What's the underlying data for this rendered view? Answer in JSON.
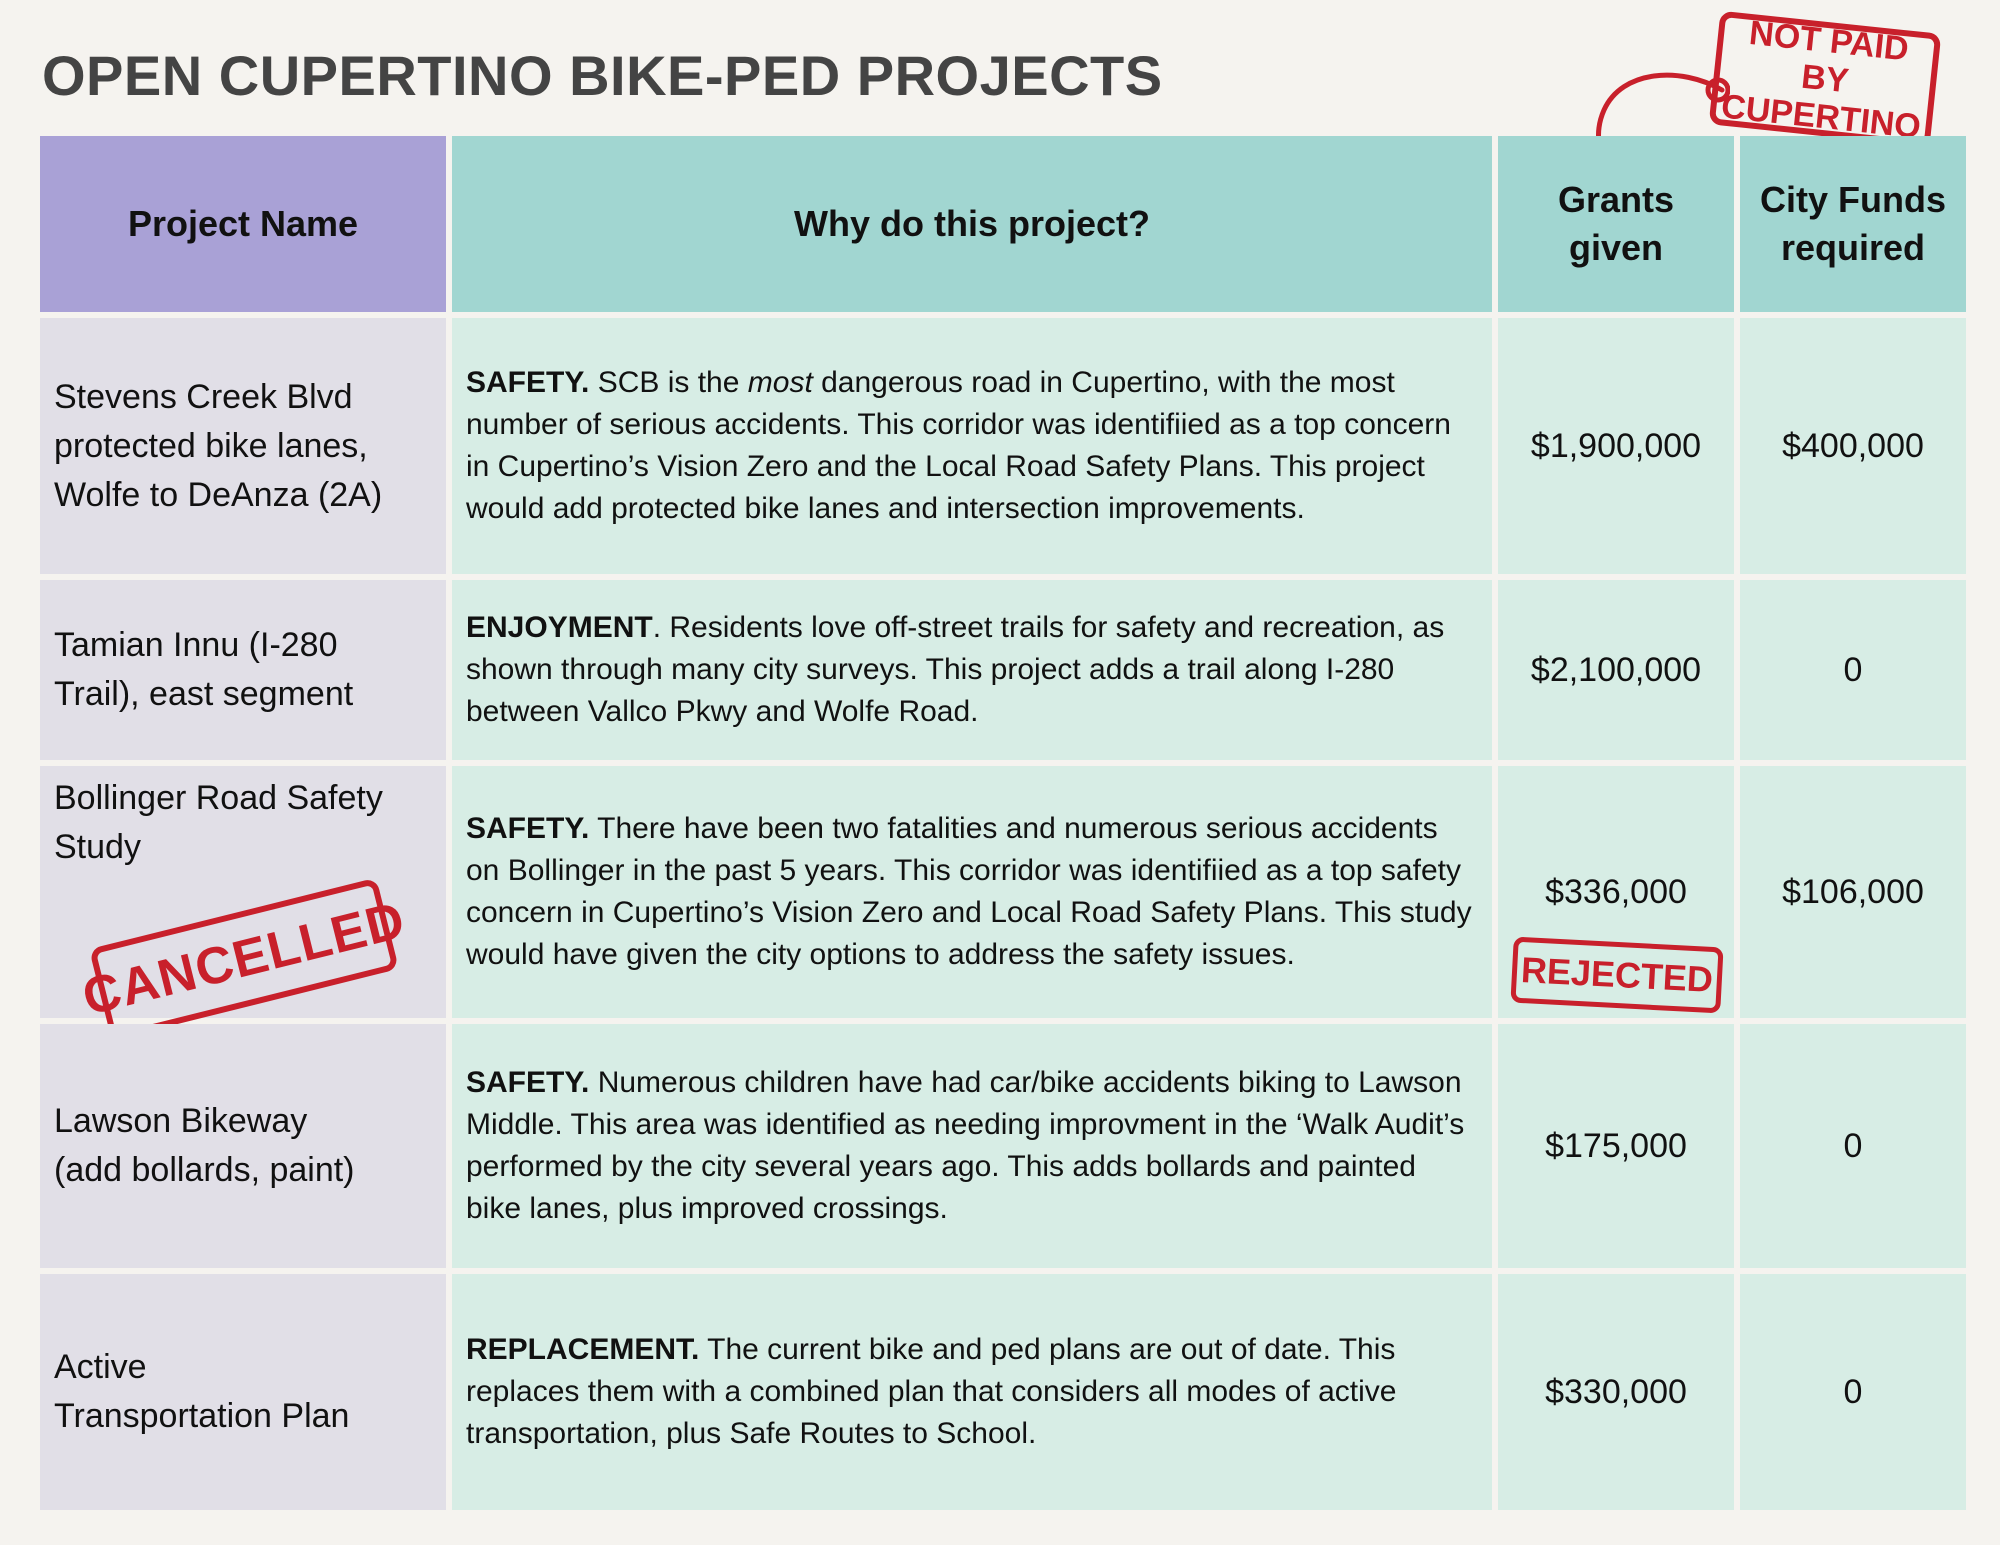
{
  "title": "OPEN CUPERTINO BIKE-PED PROJECTS",
  "headers": {
    "name": "Project Name",
    "why": "Why do this project?",
    "grants": [
      "Grants",
      "given"
    ],
    "city": [
      "City Funds",
      "required"
    ]
  },
  "callout": {
    "stamp_line1": "NOT PAID BY",
    "stamp_line2": "CUPERTINO"
  },
  "rows": [
    {
      "name": [
        "Stevens Creek Blvd",
        "protected bike lanes,",
        "Wolfe to DeAnza (2A)"
      ],
      "why_label": "SAFETY.",
      "why_pre": " SCB is the ",
      "why_em": "most",
      "why_post": " dangerous road in Cupertino, with the most number of serious accidents. This corridor was identifiied as a top concern in Cupertino’s Vision Zero and the Local Road Safety Plans. This project would add protected bike lanes and intersection improvements.",
      "grants": "$1,900,000",
      "city": "$400,000"
    },
    {
      "name": [
        "Tamian Innu (I-280",
        "Trail), east segment"
      ],
      "why_label": "ENJOYMENT",
      "why_text": ". Residents love off-street trails for safety and recreation, as shown through many city surveys. This project adds a trail along I-280 between Vallco Pkwy and Wolfe Road.",
      "grants": "$2,100,000",
      "city": "0"
    },
    {
      "name": [
        "Bollinger Road Safety",
        "Study"
      ],
      "stamp": "CANCELLED",
      "why_label": "SAFETY.",
      "why_text": " There have been two fatalities and numerous serious accidents on Bollinger in the past 5 years. This corridor was identifiied as a top safety concern in Cupertino’s Vision Zero and Local Road Safety Plans. This study would have given the city options to address the safety issues.",
      "grants": "$336,000",
      "grants_stamp": "REJECTED",
      "city": "$106,000"
    },
    {
      "name": [
        "Lawson Bikeway",
        "(add bollards, paint)"
      ],
      "why_label": "SAFETY.",
      "why_text": " Numerous children have had car/bike accidents biking to Lawson Middle. This area was identified as needing improvment in the ‘Walk Audit’s performed by the city several years ago. This adds bollards and painted bike lanes, plus improved crossings.",
      "grants": "$175,000",
      "city": "0"
    },
    {
      "name": [
        "Active",
        "Transportation Plan"
      ],
      "why_label": "REPLACEMENT.",
      "why_text": " The current bike and ped plans are out of date. This replaces them with a combined plan that considers all modes of active transportation, plus Safe Routes to School.",
      "grants": "$330,000",
      "city": "0"
    }
  ]
}
